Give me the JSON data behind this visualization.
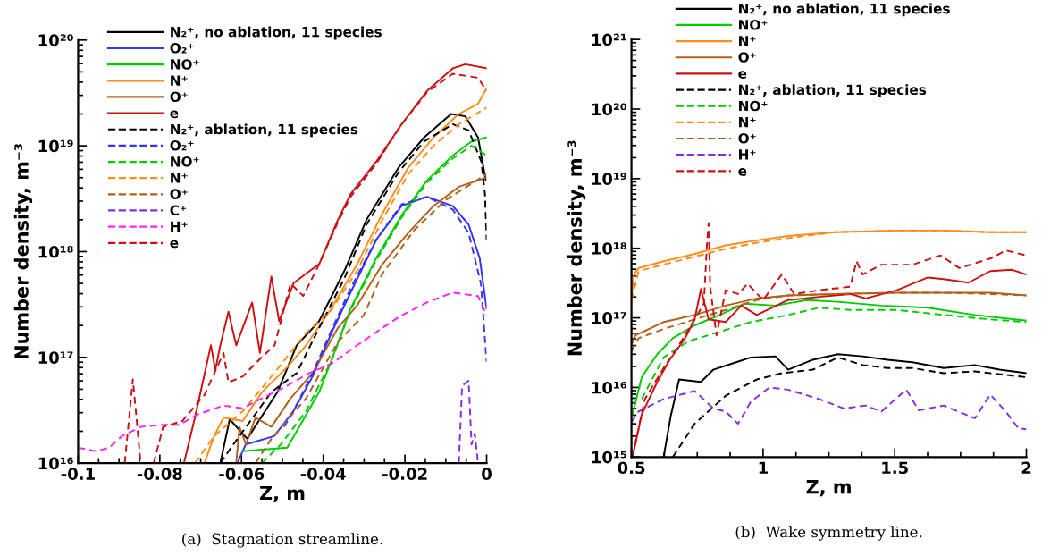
{
  "chart_data": [
    {
      "type": "line",
      "xlabel": "Z, m",
      "ylabel": "Number density, m⁻³",
      "log": "y",
      "legend": "top left",
      "grid": false,
      "xlim": [
        -0.1,
        0
      ],
      "xticks": [
        -0.1,
        -0.08,
        -0.06,
        -0.04,
        -0.02,
        0
      ],
      "ylim": [
        1e+16,
        1e+20
      ],
      "yticks": [
        {
          "value": 1e+16,
          "label": "10¹⁶"
        },
        {
          "value": 1e+17,
          "label": "10¹⁷"
        },
        {
          "value": 1e+18,
          "label": "10¹⁸"
        },
        {
          "value": 1e+19,
          "label": "10¹⁹"
        },
        {
          "value": 1e+20,
          "label": "10²⁰"
        }
      ],
      "annotations": [
        "(a)  Stagnation streamline."
      ],
      "series": [
        {
          "name": "N₂⁺, no ablation, 11 species",
          "color": "#000000",
          "line_style": "solid",
          "x": [
            -0.0652,
            -0.0629,
            -0.0586,
            -0.0512,
            -0.0465,
            -0.041,
            -0.0348,
            -0.0294,
            -0.0216,
            -0.0153,
            -0.0087,
            -0.0052,
            -0.0021,
            -0.0002
          ],
          "values": [
            1e+16,
            2.6e+16,
            1.7e+16,
            4.7e+16,
            1.3e+17,
            2.2e+17,
            6.6e+17,
            2e+18,
            6.2e+18,
            1.2e+19,
            2e+19,
            1.9e+19,
            1.2e+19,
            4.7e+18
          ]
        },
        {
          "name": "O₂⁺",
          "color": "#3333ff",
          "line_style": "solid",
          "x": [
            -0.061,
            -0.059,
            -0.052,
            -0.0473,
            -0.0426,
            -0.038,
            -0.0333,
            -0.027,
            -0.0208,
            -0.0146,
            -0.0083,
            -0.0044,
            -0.0017,
            0
          ],
          "values": [
            1e+16,
            1.5e+16,
            1.8e+16,
            3.1e+16,
            6.6e+16,
            1.7e+17,
            4.1e+17,
            1.3e+18,
            2.7e+18,
            3.3e+18,
            2.7e+18,
            1.8e+18,
            8.7e+17,
            2.9e+17
          ]
        },
        {
          "name": "NO⁺",
          "color": "#00cc00",
          "line_style": "solid",
          "x": [
            -0.0597,
            -0.0488,
            -0.0465,
            -0.041,
            -0.038,
            -0.0333,
            -0.027,
            -0.0208,
            -0.0146,
            -0.0083,
            -0.0037,
            0
          ],
          "values": [
            1.3e+16,
            1.4e+16,
            2e+16,
            4.7e+16,
            9.3e+16,
            2.9e+17,
            8.7e+17,
            2.2e+18,
            4.7e+18,
            8.1e+18,
            1.1e+19,
            1.2e+19
          ]
        },
        {
          "name": "N⁺",
          "color": "#ff8c1a",
          "line_style": "solid",
          "x": [
            -0.0691,
            -0.0667,
            -0.0644,
            -0.0597,
            -0.055,
            -0.0488,
            -0.0442,
            -0.038,
            -0.0317,
            -0.0255,
            -0.0192,
            -0.013,
            -0.0068,
            -0.0021,
            0
          ],
          "values": [
            1e+16,
            1.8e+16,
            2.7e+16,
            2.5e+16,
            4.7e+16,
            8.1e+16,
            1.3e+17,
            2.9e+17,
            7.6e+17,
            2.3e+18,
            6.2e+18,
            1.2e+19,
            2e+19,
            2.5e+19,
            3.5e+19
          ]
        },
        {
          "name": "O⁺",
          "color": "#b35f1a",
          "line_style": "solid",
          "x": [
            -0.0613,
            -0.0605,
            -0.0589,
            -0.0566,
            -0.0527,
            -0.048,
            -0.0426,
            -0.0364,
            -0.0317,
            -0.0255,
            -0.0192,
            -0.013,
            -0.0068,
            0
          ],
          "values": [
            1e+16,
            2.2e+16,
            1.5e+16,
            2.7e+16,
            2.2e+16,
            4.1e+16,
            7.1e+16,
            1.9e+17,
            3.1e+17,
            7.6e+17,
            1.5e+18,
            2.7e+18,
            4.1e+18,
            5e+18
          ]
        },
        {
          "name": "e",
          "color": "#cc1111",
          "line_style": "solid",
          "x": [
            -0.0741,
            -0.0714,
            -0.0675,
            -0.0664,
            -0.0652,
            -0.0632,
            -0.0613,
            -0.0574,
            -0.0555,
            -0.0527,
            -0.0508,
            -0.0473,
            -0.0442,
            -0.041,
            -0.0364,
            -0.0333,
            -0.027,
            -0.0208,
            -0.0146,
            -0.0083,
            -0.0052,
            0
          ],
          "values": [
            1e+16,
            2.7e+16,
            1.3e+17,
            7.6e+16,
            1.3e+17,
            2.7e+17,
            1.3e+17,
            3.3e+17,
            1.1e+17,
            5.8e+17,
            2.2e+17,
            5e+17,
            6.2e+17,
            7.6e+17,
            2e+18,
            3.5e+18,
            7.1e+18,
            1.6e+19,
            3.3e+19,
            5.4e+19,
            5.9e+19,
            5.4e+19
          ]
        },
        {
          "name": "N₂⁺, ablation, 11 species",
          "color": "#000000",
          "line_style": "dashed",
          "x": [
            -0.0652,
            -0.062,
            -0.0527,
            -0.0465,
            -0.041,
            -0.0348,
            -0.0294,
            -0.0216,
            -0.0153,
            -0.0083,
            -0.0044,
            -0.0013,
            -0.0004,
            0
          ],
          "values": [
            1e+16,
            1.5e+16,
            4.7e+16,
            7.1e+16,
            1.9e+17,
            5.6e+17,
            1.8e+18,
            5.6e+18,
            1.1e+19,
            1.6e+19,
            1.4e+19,
            7.1e+18,
            3.5e+18,
            1.3e+18
          ]
        },
        {
          "name": "O₂⁺",
          "color": "#3333ff",
          "line_style": "dashed",
          "x": [
            -0.0496,
            -0.0473,
            -0.0426,
            -0.038,
            -0.0333,
            -0.027,
            -0.0208,
            -0.0146,
            -0.0083,
            -0.0044,
            -0.0014,
            0
          ],
          "values": [
            2.2e+16,
            3.1e+16,
            7.1e+16,
            1.8e+17,
            4.5e+17,
            1.3e+18,
            2.8e+18,
            3.3e+18,
            2.5e+18,
            1.5e+18,
            5e+17,
            9.1e+16
          ]
        },
        {
          "name": "NO⁺",
          "color": "#00cc00",
          "line_style": "dashed",
          "x": [
            -0.055,
            -0.0504,
            -0.0442,
            -0.038,
            -0.0333,
            -0.027,
            -0.0208,
            -0.0146,
            -0.0083,
            -0.0037,
            0
          ],
          "values": [
            1e+16,
            1.5e+16,
            3.1e+16,
            9.3e+16,
            2.8e+17,
            8.3e+17,
            2.1e+18,
            4.5e+18,
            7.6e+18,
            1e+19,
            8.1e+18
          ]
        },
        {
          "name": "N⁺",
          "color": "#ff8c1a",
          "line_style": "dashed",
          "x": [
            -0.0714,
            -0.0667,
            -0.0597,
            -0.052,
            -0.0442,
            -0.038,
            -0.0317,
            -0.0255,
            -0.0192,
            -0.013,
            -0.0068,
            0
          ],
          "values": [
            1e+16,
            1.8e+16,
            3.1e+16,
            7.1e+16,
            1.7e+17,
            2.8e+17,
            6.6e+17,
            2e+18,
            5.4e+18,
            1e+19,
            1.6e+19,
            2.3e+19
          ]
        },
        {
          "name": "O⁺",
          "color": "#b35f1a",
          "line_style": "dashed",
          "x": [
            -0.0566,
            -0.0527,
            -0.0442,
            -0.0364,
            -0.0301,
            -0.0255,
            -0.0177,
            -0.0099,
            0
          ],
          "values": [
            1e+16,
            1.7e+16,
            4.1e+16,
            1.4e+17,
            2.5e+17,
            6.2e+17,
            1.6e+18,
            3.1e+18,
            5.4e+18
          ]
        },
        {
          "name": "C⁺",
          "color": "#8a2be2",
          "line_style": "dashed",
          "x": [
            -0.0068,
            -0.006,
            -0.0044,
            -0.0037,
            -0.0029,
            -0.0021
          ],
          "values": [
            1e+16,
            5.4e+16,
            6e+16,
            1.5e+16,
            1.9e+16,
            1e+16
          ]
        },
        {
          "name": "H⁺",
          "color": "#ff22ff",
          "line_style": "dashed",
          "x": [
            -0.1,
            -0.0956,
            -0.0924,
            -0.0893,
            -0.0847,
            -0.08,
            -0.0753,
            -0.0706,
            -0.0644,
            -0.0597,
            -0.055,
            -0.0488,
            -0.0434,
            -0.038,
            -0.0317,
            -0.0255,
            -0.0208,
            -0.0146,
            -0.0083,
            -0.0021,
            0
          ],
          "values": [
            1.4e+16,
            1.3e+16,
            1.4e+16,
            1.8e+16,
            2.2e+16,
            2.3e+16,
            2.3e+16,
            2.9e+16,
            3.5e+16,
            3.3e+16,
            4.1e+16,
            5.4e+16,
            7.1e+16,
            8.7e+16,
            1.3e+17,
            1.9e+17,
            2.5e+17,
            3.3e+17,
            4.1e+17,
            3.8e+17,
            2.5e+17
          ]
        },
        {
          "name": "e",
          "color": "#cc1111",
          "line_style": "dashed",
          "x": [
            -0.0886,
            -0.0866,
            -0.0847,
            -0.083,
            -0.0815,
            -0.0792,
            -0.0745,
            -0.0691,
            -0.0644,
            -0.0632,
            -0.0597,
            -0.0551,
            -0.0519,
            -0.048,
            -0.0449,
            -0.041,
            -0.0364,
            -0.0333,
            -0.027,
            -0.0208,
            -0.0146,
            -0.0083,
            -0.0021,
            0
          ],
          "values": [
            1e+16,
            6.2e+16,
            1e+16,
            null,
            1e+16,
            2.2e+16,
            2.5e+16,
            4.4e+16,
            1.1e+17,
            5.8e+16,
            6.6e+16,
            1e+17,
            1.3e+17,
            5e+17,
            3.8e+17,
            7.6e+17,
            1.9e+18,
            3.3e+18,
            6.8e+18,
            1.6e+19,
            3.2e+19,
            4.8e+19,
            4.4e+19,
            3.3e+19
          ]
        }
      ]
    },
    {
      "type": "line",
      "xlabel": "Z, m",
      "ylabel": "Number density, m⁻³",
      "log": "y",
      "grid": false,
      "legend": "top left",
      "xlim": [
        0.5,
        2
      ],
      "xticks": [
        0.5,
        1,
        1.5,
        2
      ],
      "ylim": [
        1000000000000000.0,
        1e+21
      ],
      "yticks": [
        {
          "value": 1000000000000000.0,
          "label": "10¹⁵"
        },
        {
          "value": 1e+16,
          "label": "10¹⁶"
        },
        {
          "value": 1e+17,
          "label": "10¹⁷"
        },
        {
          "value": 1e+18,
          "label": "10¹⁸"
        },
        {
          "value": 1e+19,
          "label": "10¹⁹"
        },
        {
          "value": 1e+20,
          "label": "10²⁰"
        },
        {
          "value": 1e+21,
          "label": "10²¹"
        }
      ],
      "annotations": [
        "(b)  Wake symmetry line."
      ],
      "series": [
        {
          "name": "N₂⁺, no ablation, 11 species",
          "color": "#000000",
          "line_style": "solid",
          "x": [
            0.622,
            0.65,
            0.681,
            0.764,
            0.811,
            0.882,
            0.953,
            1.047,
            1.095,
            1.189,
            1.284,
            1.378,
            1.473,
            1.567,
            1.686,
            1.804,
            1.898,
            2.0
          ],
          "values": [
            1000000000000000.0,
            4000000000000000.0,
            1.3e+16,
            1.2e+16,
            1.8e+16,
            2.2e+16,
            2.7e+16,
            2.8e+16,
            1.8e+16,
            2.5e+16,
            3e+16,
            2.8e+16,
            2.5e+16,
            2.3e+16,
            1.9e+16,
            2.1e+16,
            1.8e+16,
            1.6e+16
          ]
        },
        {
          "name": "NO⁺",
          "color": "#00cc00",
          "line_style": "solid",
          "x": [
            0.504,
            0.539,
            0.598,
            0.657,
            0.74,
            0.835,
            0.929,
            1.047,
            1.165,
            1.284,
            1.449,
            1.626,
            1.804,
            2.0
          ],
          "values": [
            4100000000000000.0,
            1.4e+16,
            3e+16,
            5.1e+16,
            7.8e+16,
            1.1e+17,
            1.6e+17,
            1.5e+17,
            1.8e+17,
            1.7e+17,
            1.5e+17,
            1.4e+17,
            1.1e+17,
            9.1e+16
          ]
        },
        {
          "name": "N⁺",
          "color": "#ff8c1a",
          "line_style": "solid",
          "x": [
            0.5,
            0.509,
            0.527,
            0.622,
            0.74,
            0.858,
            0.976,
            1.095,
            1.272,
            1.508,
            1.686,
            1.863,
            2.0
          ],
          "values": [
            2e+17,
            4.2e+17,
            5.2e+17,
            6.5e+17,
            8.3e+17,
            1.1e+18,
            1.3e+18,
            1.5e+18,
            1.7e+18,
            1.8e+18,
            1.8e+18,
            1.7e+18,
            1.7e+18
          ]
        },
        {
          "name": "O⁺",
          "color": "#b35f1a",
          "line_style": "solid",
          "x": [
            0.5,
            0.515,
            0.622,
            0.74,
            0.858,
            0.976,
            1.095,
            1.272,
            1.508,
            1.686,
            1.863,
            2.0
          ],
          "values": [
            4.1e+16,
            5.6e+16,
            8.7e+16,
            1.1e+17,
            1.5e+17,
            1.9e+17,
            2.1e+17,
            2.2e+17,
            2.3e+17,
            2.3e+17,
            2.3e+17,
            2.1e+17
          ]
        },
        {
          "name": "e",
          "color": "#cc1111",
          "line_style": "solid",
          "x": [
            0.504,
            0.539,
            0.598,
            0.645,
            0.704,
            0.74,
            0.764,
            0.793,
            0.858,
            0.917,
            0.976,
            1.095,
            1.213,
            1.331,
            1.39,
            1.508,
            1.626,
            1.686,
            1.78,
            1.863,
            1.946,
            2.0
          ],
          "values": [
            1000000000000000.0,
            4100000000000000.0,
            1.2e+16,
            2.5e+16,
            5.1e+16,
            9.5e+16,
            2.6e+17,
            9.5e+16,
            8.7e+16,
            1.5e+17,
            1.1e+17,
            1.8e+17,
            2e+17,
            2.2e+17,
            1.9e+17,
            2.5e+17,
            3.8e+17,
            3.6e+17,
            3.2e+17,
            4.7e+17,
            4.9e+17,
            4.2e+17
          ]
        },
        {
          "name": "N₂⁺, ablation, 11 species",
          "color": "#000000",
          "line_style": "dashed",
          "x": [
            0.657,
            0.74,
            0.858,
            0.976,
            1.071,
            1.189,
            1.284,
            1.378,
            1.473,
            1.567,
            1.686,
            1.804,
            2.0
          ],
          "values": [
            1000000000000000.0,
            3000000000000000.0,
            7600000000000000.0,
            1.3e+16,
            1.6e+16,
            1.8e+16,
            2.7e+16,
            2.1e+16,
            1.9e+16,
            1.9e+16,
            1.6e+16,
            1.7e+16,
            1.4e+16
          ]
        },
        {
          "name": "NO⁺",
          "color": "#00cc00",
          "line_style": "dashed",
          "x": [
            0.539,
            0.622,
            0.716,
            0.835,
            0.953,
            1.095,
            1.213,
            1.331,
            1.508,
            1.686,
            1.863,
            2.0
          ],
          "values": [
            6800000000000000.0,
            2.7e+16,
            4.6e+16,
            6.3e+16,
            8.7e+16,
            1.1e+17,
            1.4e+17,
            1.3e+17,
            1.3e+17,
            1.1e+17,
            9.5e+16,
            8.7e+16
          ]
        },
        {
          "name": "N⁺",
          "color": "#ff8c1a",
          "line_style": "dashed",
          "x": [
            0.5,
            0.527,
            0.74,
            0.858,
            0.976,
            1.095,
            1.272,
            1.508,
            1.686,
            1.863,
            2.0
          ],
          "values": [
            1.8e+17,
            4.7e+17,
            7.6e+17,
            9.8e+17,
            1.2e+18,
            1.4e+18,
            1.7e+18,
            1.8e+18,
            1.8e+18,
            1.7e+18,
            1.7e+18
          ]
        },
        {
          "name": "O⁺",
          "color": "#b35f1a",
          "line_style": "dashed",
          "x": [
            0.5,
            0.527,
            0.622,
            0.74,
            0.858,
            0.976,
            1.095,
            1.272,
            1.508,
            1.686,
            1.863,
            2.0
          ],
          "values": [
            3.3e+16,
            5.1e+16,
            6.9e+16,
            9.5e+16,
            1.3e+17,
            1.8e+17,
            2.1e+17,
            2.2e+17,
            2.3e+17,
            2.3e+17,
            2.2e+17,
            2.1e+17
          ]
        },
        {
          "name": "H⁺",
          "color": "#8a2be2",
          "line_style": "dashed",
          "x": [
            0.5,
            0.527,
            0.622,
            0.74,
            0.811,
            0.858,
            0.905,
            0.953,
            1.024,
            1.095,
            1.213,
            1.307,
            1.39,
            1.449,
            1.544,
            1.591,
            1.686,
            1.804,
            1.863,
            1.922,
            1.969,
            2.0
          ],
          "values": [
            3200000000000000.0,
            4500000000000000.0,
            6800000000000000.0,
            8900000000000000.0,
            5000000000000000.0,
            4500000000000000.0,
            3000000000000000.0,
            6200000000000000.0,
            1e+16,
            9300000000000000.0,
            6800000000000000.0,
            5000000000000000.0,
            5500000000000000.0,
            4500000000000000.0,
            9300000000000000.0,
            4700000000000000.0,
            5500000000000000.0,
            3600000000000000.0,
            7900000000000000.0,
            4500000000000000.0,
            2600000000000000.0,
            2500000000000000.0
          ]
        },
        {
          "name": "e",
          "color": "#cc1111",
          "line_style": "dashed",
          "x": [
            0.504,
            0.551,
            0.622,
            0.681,
            0.74,
            0.775,
            0.787,
            0.793,
            0.799,
            0.823,
            0.858,
            0.905,
            0.941,
            1.0,
            1.071,
            1.118,
            1.213,
            1.331,
            1.355,
            1.378,
            1.449,
            1.567,
            1.674,
            1.745,
            1.863,
            1.922,
            2.0
          ],
          "values": [
            1000000000000000.0,
            6800000000000000.0,
            1.9e+16,
            4.1e+16,
            9.5e+16,
            1.6e+17,
            1.2e+18,
            2.3e+18,
            2.8e+17,
            5.6e+16,
            2.5e+17,
            2.2e+17,
            3.1e+17,
            1.8e+17,
            4.2e+17,
            2.2e+17,
            2.5e+17,
            2.8e+17,
            6.5e+17,
            4.2e+17,
            5.8e+17,
            5.8e+17,
            7.9e+17,
            5.2e+17,
            7.1e+17,
            9.3e+17,
            7.9e+17
          ]
        }
      ]
    }
  ]
}
